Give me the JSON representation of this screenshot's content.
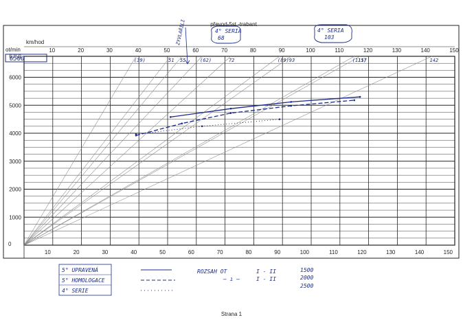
{
  "page": {
    "title": "převod-5st.-trabant",
    "footer": "Strana 1",
    "rpm_unit": "ot/min",
    "speed_unit": "km/hod"
  },
  "handwritten": {
    "rpm_box": "6500",
    "note_vertical": "ZYVLAŘILI",
    "serie_label_1": "4° SERIA",
    "serie_value_1": "68",
    "serie_label_2": "4° SERIA",
    "serie_value_2": "103",
    "ray_labels": [
      "(39)",
      "51",
      "55",
      "(62)",
      "72",
      "(89)",
      "93",
      "(115)",
      "117",
      "142"
    ]
  },
  "legend": {
    "items": [
      {
        "label": "5° UPRAVENÁ",
        "style": "solid"
      },
      {
        "label": "5° HOMOLOGACE",
        "style": "dashed"
      },
      {
        "label": "4° SERIE",
        "style": "dotted"
      }
    ],
    "range_text": "ROZSAH OT",
    "range_rows": [
      {
        "gear": "I - II",
        "value": "1500"
      },
      {
        "gear": "I - II",
        "value": "2000"
      },
      {
        "gear": "",
        "value": "2500"
      }
    ]
  },
  "colors": {
    "grid": "#222222",
    "rays": "#8a8a8a",
    "ink": "#1a2a8a",
    "paper": "#ffffff"
  },
  "chart_data": {
    "type": "line",
    "title": "převod-5st.-trabant",
    "xlabel": "km/hod",
    "ylabel": "ot/min",
    "xlim": [
      0,
      150
    ],
    "ylim": [
      0,
      6750
    ],
    "x_ticks": [
      10,
      20,
      30,
      40,
      50,
      60,
      70,
      80,
      90,
      100,
      110,
      120,
      130,
      140,
      150
    ],
    "y_ticks": [
      1000,
      2000,
      3000,
      4000,
      5000,
      6000,
      6750
    ],
    "y_tick_labels": [
      "1000",
      "2000",
      "3000",
      "4000",
      "5000",
      "6000",
      "6750"
    ],
    "grid": true,
    "rays_speed_at_6750": [
      39,
      51,
      55,
      62,
      72,
      89,
      93,
      115,
      117,
      142
    ],
    "series": [
      {
        "name": "5° UPRAVENÁ",
        "style": "solid",
        "x": [
          51,
          72,
          93,
          117
        ],
        "y": [
          4580,
          4880,
          5120,
          5300
        ]
      },
      {
        "name": "5° HOMOLOGACE",
        "style": "dashed",
        "x": [
          39,
          55,
          72,
          93,
          115
        ],
        "y": [
          3920,
          4350,
          4720,
          4980,
          5180
        ]
      },
      {
        "name": "4° SERIE",
        "style": "dotted",
        "x": [
          39,
          62,
          89
        ],
        "y": [
          3960,
          4250,
          4500
        ]
      }
    ]
  }
}
